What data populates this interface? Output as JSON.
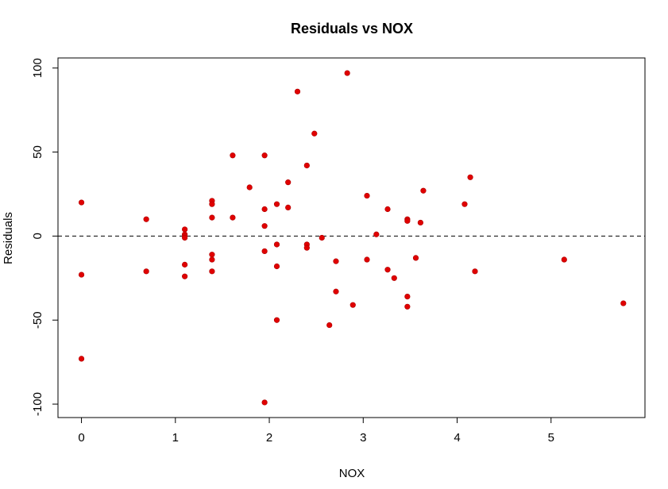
{
  "chart_data": {
    "type": "scatter",
    "title": "Residuals vs NOX",
    "xlabel": "NOX",
    "ylabel": "Residuals",
    "xlim": [
      -0.25,
      6.0
    ],
    "ylim": [
      -108,
      106
    ],
    "x_ticks": [
      0,
      1,
      2,
      3,
      4,
      5
    ],
    "y_ticks": [
      -100,
      -50,
      0,
      50,
      100
    ],
    "point_color": "#e00000",
    "reference_line": {
      "y": 0,
      "style": "dashed",
      "color": "#000000"
    },
    "grid": false,
    "legend": "none",
    "points": [
      {
        "x": 0.0,
        "y": 20
      },
      {
        "x": 0.0,
        "y": -23
      },
      {
        "x": 0.0,
        "y": -73
      },
      {
        "x": 0.69,
        "y": 10
      },
      {
        "x": 0.69,
        "y": -21
      },
      {
        "x": 1.1,
        "y": 4
      },
      {
        "x": 1.1,
        "y": 1
      },
      {
        "x": 1.1,
        "y": 0
      },
      {
        "x": 1.1,
        "y": -1
      },
      {
        "x": 1.1,
        "y": -17
      },
      {
        "x": 1.1,
        "y": -24
      },
      {
        "x": 1.39,
        "y": 21
      },
      {
        "x": 1.39,
        "y": 19
      },
      {
        "x": 1.39,
        "y": 11
      },
      {
        "x": 1.39,
        "y": -11
      },
      {
        "x": 1.39,
        "y": -14
      },
      {
        "x": 1.39,
        "y": -21
      },
      {
        "x": 1.61,
        "y": 48
      },
      {
        "x": 1.61,
        "y": 11
      },
      {
        "x": 1.79,
        "y": 29
      },
      {
        "x": 1.95,
        "y": 48
      },
      {
        "x": 1.95,
        "y": 16
      },
      {
        "x": 1.95,
        "y": 6
      },
      {
        "x": 1.95,
        "y": -9
      },
      {
        "x": 1.95,
        "y": -99
      },
      {
        "x": 2.08,
        "y": 19
      },
      {
        "x": 2.08,
        "y": -5
      },
      {
        "x": 2.08,
        "y": -18
      },
      {
        "x": 2.08,
        "y": -50
      },
      {
        "x": 2.2,
        "y": 32
      },
      {
        "x": 2.2,
        "y": 17
      },
      {
        "x": 2.3,
        "y": 86
      },
      {
        "x": 2.4,
        "y": 42
      },
      {
        "x": 2.4,
        "y": -5
      },
      {
        "x": 2.4,
        "y": -7
      },
      {
        "x": 2.48,
        "y": 61
      },
      {
        "x": 2.56,
        "y": -1
      },
      {
        "x": 2.64,
        "y": -53
      },
      {
        "x": 2.71,
        "y": -15
      },
      {
        "x": 2.71,
        "y": -33
      },
      {
        "x": 2.83,
        "y": 97
      },
      {
        "x": 2.89,
        "y": -41
      },
      {
        "x": 3.04,
        "y": 24
      },
      {
        "x": 3.04,
        "y": -14
      },
      {
        "x": 3.14,
        "y": 1
      },
      {
        "x": 3.26,
        "y": 16
      },
      {
        "x": 3.26,
        "y": -20
      },
      {
        "x": 3.33,
        "y": -25
      },
      {
        "x": 3.47,
        "y": 10
      },
      {
        "x": 3.47,
        "y": 9
      },
      {
        "x": 3.47,
        "y": -36
      },
      {
        "x": 3.47,
        "y": -42
      },
      {
        "x": 3.56,
        "y": -13
      },
      {
        "x": 3.61,
        "y": 8
      },
      {
        "x": 3.64,
        "y": 27
      },
      {
        "x": 4.08,
        "y": 19
      },
      {
        "x": 4.14,
        "y": 35
      },
      {
        "x": 4.19,
        "y": -21
      },
      {
        "x": 5.14,
        "y": -14
      },
      {
        "x": 5.77,
        "y": -40
      }
    ]
  }
}
